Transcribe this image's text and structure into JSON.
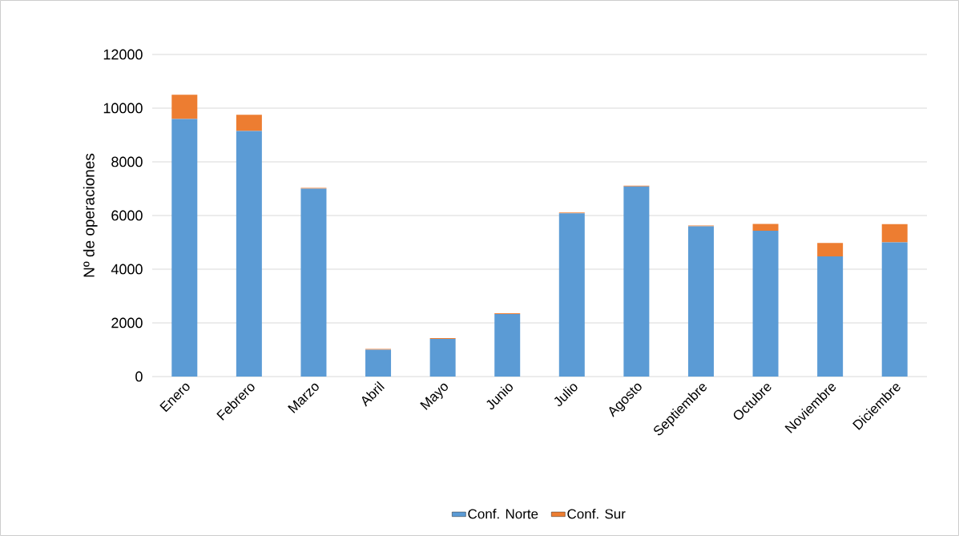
{
  "chart_data": {
    "type": "bar",
    "stacked": true,
    "ylabel": "Nº de operaciones",
    "categories": [
      "Enero",
      "Febrero",
      "Marzo",
      "Abril",
      "Mayo",
      "Junio",
      "Julio",
      "Agosto",
      "Septiembre",
      "Octubre",
      "Noviembre",
      "Diciembre"
    ],
    "series": [
      {
        "name": "Conf. Norte",
        "color": "#5b9bd5",
        "values": [
          9600,
          9150,
          7000,
          1000,
          1400,
          2330,
          6080,
          7080,
          5600,
          5430,
          4480,
          5000
        ]
      },
      {
        "name": "Conf. Sur",
        "color": "#ed7d31",
        "values": [
          900,
          600,
          30,
          30,
          30,
          30,
          30,
          30,
          30,
          260,
          500,
          680
        ]
      }
    ],
    "ylim": [
      0,
      12000
    ],
    "yticks": [
      0,
      2000,
      4000,
      6000,
      8000,
      10000,
      12000
    ],
    "grid": "y",
    "legend": "bottom"
  }
}
